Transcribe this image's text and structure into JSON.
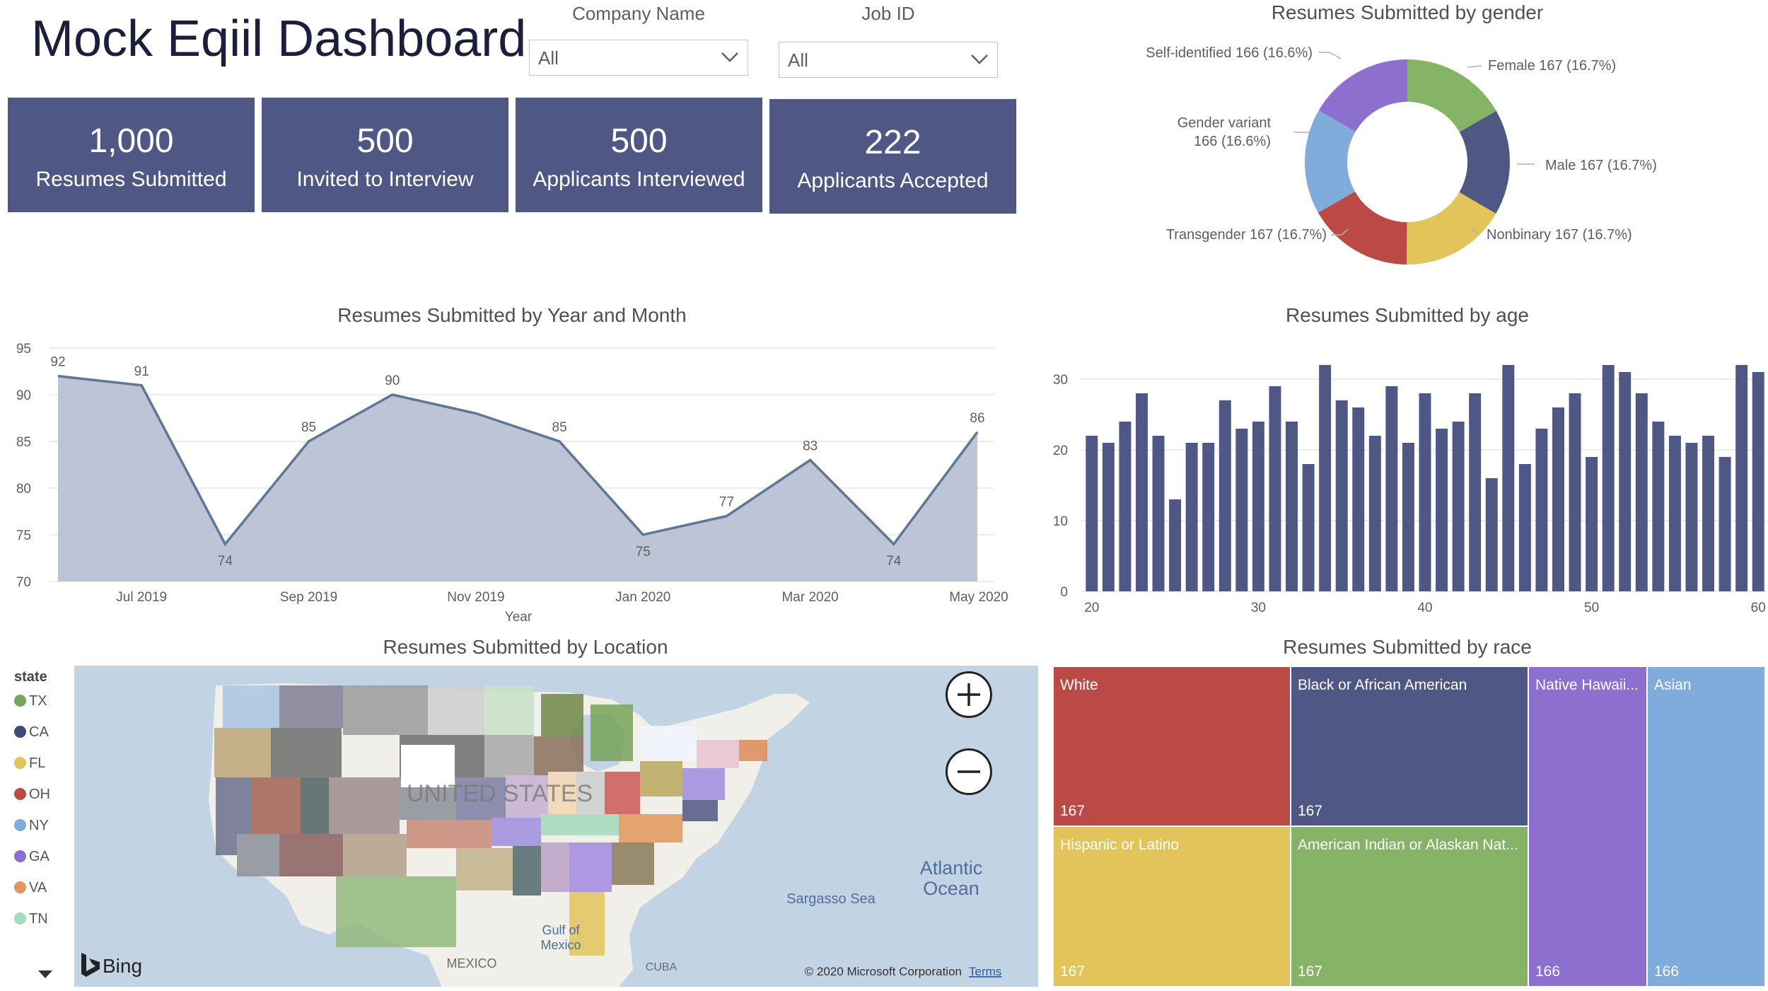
{
  "header": {
    "title": "Mock Eqiil Dashboard"
  },
  "filters": {
    "company": {
      "label": "Company Name",
      "value": "All"
    },
    "job": {
      "label": "Job ID",
      "value": "All"
    }
  },
  "kpis": [
    {
      "value": "1,000",
      "label": "Resumes Submitted"
    },
    {
      "value": "500",
      "label": "Invited to Interview"
    },
    {
      "value": "500",
      "label": "Applicants Interviewed"
    },
    {
      "value": "222",
      "label": "Applicants Accepted"
    }
  ],
  "colors": {
    "kpi_bg": "#4f5785",
    "area_fill": "#bcc4d6",
    "area_line": "#5e7795",
    "bar": "#4f5785",
    "map_water": "#c2d3e3",
    "map_land": "#f1efea"
  },
  "gender_chart": {
    "title": "Resumes Submitted by gender",
    "chart_data": {
      "type": "pie",
      "title": "Resumes Submitted by gender",
      "slices": [
        {
          "label": "Female",
          "value": 167,
          "pct": "16.7%",
          "color": "#85b466"
        },
        {
          "label": "Male",
          "value": 167,
          "pct": "16.7%",
          "color": "#4f5785"
        },
        {
          "label": "Nonbinary",
          "value": 167,
          "pct": "16.7%",
          "color": "#e2c45b"
        },
        {
          "label": "Transgender",
          "value": 167,
          "pct": "16.7%",
          "color": "#bb4a47"
        },
        {
          "label": "Gender variant",
          "value": 166,
          "pct": "16.6%",
          "color": "#80acdc"
        },
        {
          "label": "Self-identified",
          "value": 166,
          "pct": "16.6%",
          "color": "#8c6fce"
        }
      ],
      "label_texts": [
        "Female 167 (16.7%)",
        "Male 167 (16.7%)",
        "Nonbinary 167 (16.7%)",
        "Transgender 167 (16.7%)",
        "Gender variant",
        "166 (16.6%)",
        "Self-identified 166 (16.6%)"
      ]
    }
  },
  "month_chart": {
    "title": "Resumes Submitted by Year and Month",
    "chart_data": {
      "type": "area",
      "title": "Resumes Submitted by Year and Month",
      "xlabel": "Year",
      "ylabel": "",
      "ylim": [
        70,
        95
      ],
      "yticks": [
        70,
        75,
        80,
        85,
        90,
        95
      ],
      "x": [
        "Jun 2019",
        "Jul 2019",
        "Aug 2019",
        "Sep 2019",
        "Oct 2019",
        "Nov 2019",
        "Dec 2019",
        "Jan 2020",
        "Feb 2020",
        "Mar 2020",
        "Apr 2020",
        "May 2020"
      ],
      "values": [
        92,
        91,
        74,
        85,
        90,
        88,
        85,
        75,
        77,
        83,
        74,
        86
      ],
      "value_labels": [
        "92",
        "91",
        "74",
        "85",
        "90",
        "",
        "85",
        "75",
        "77",
        "83",
        "74",
        "86"
      ],
      "xtick_labels": [
        "Jul 2019",
        "Sep 2019",
        "Nov 2019",
        "Jan 2020",
        "Mar 2020",
        "May 2020"
      ],
      "grid": true
    }
  },
  "age_chart": {
    "title": "Resumes Submitted by age",
    "chart_data": {
      "type": "bar",
      "title": "Resumes Submitted by age",
      "xlabel": "",
      "ylabel": "",
      "ylim": [
        0,
        33
      ],
      "yticks": [
        0,
        10,
        20,
        30
      ],
      "xticks": [
        20,
        30,
        40,
        50,
        60
      ],
      "x": [
        20,
        21,
        22,
        23,
        24,
        25,
        26,
        27,
        28,
        29,
        30,
        31,
        32,
        33,
        34,
        35,
        36,
        37,
        38,
        39,
        40,
        41,
        42,
        43,
        44,
        45,
        46,
        47,
        48,
        49,
        50,
        51,
        52,
        53,
        54,
        55,
        56,
        57,
        58,
        59,
        60
      ],
      "values": [
        22,
        21,
        24,
        28,
        22,
        13,
        21,
        21,
        27,
        23,
        24,
        29,
        24,
        18,
        32,
        27,
        26,
        22,
        29,
        21,
        28,
        23,
        24,
        28,
        16,
        32,
        18,
        23,
        26,
        28,
        19,
        32,
        31,
        28,
        24,
        22,
        21,
        22,
        19,
        32,
        31
      ],
      "grid": true
    }
  },
  "location_map": {
    "title": "Resumes Submitted by Location",
    "legend_title": "state",
    "legend": [
      {
        "label": "TX",
        "color": "#77a35a"
      },
      {
        "label": "CA",
        "color": "#3f4a78"
      },
      {
        "label": "FL",
        "color": "#e2c45b"
      },
      {
        "label": "OH",
        "color": "#bb4a47"
      },
      {
        "label": "NY",
        "color": "#80acdc"
      },
      {
        "label": "GA",
        "color": "#8c6fce"
      },
      {
        "label": "VA",
        "color": "#e1975e"
      },
      {
        "label": "TN",
        "color": "#a4dbbc"
      }
    ],
    "labels": {
      "country": "UNITED STATES",
      "ocean_line1": "Atlantic",
      "ocean_line2": "Ocean",
      "sargasso": "Sargasso Sea",
      "gulf_line1": "Gulf of",
      "gulf_line2": "Mexico",
      "mexico": "MEXICO",
      "cuba": "CUBA",
      "brand": "Bing",
      "copyright": "© 2020 Microsoft Corporation",
      "terms": "Terms"
    }
  },
  "race_chart": {
    "title": "Resumes Submitted by race",
    "chart_data": {
      "type": "treemap",
      "title": "Resumes Submitted by race",
      "items": [
        {
          "label": "White",
          "value": 167,
          "color": "#bb4a47"
        },
        {
          "label": "Black or African American",
          "value": 167,
          "color": "#4f5785"
        },
        {
          "label": "Native Hawaii...",
          "value": 166,
          "color": "#8c6fce"
        },
        {
          "label": "Asian",
          "value": 166,
          "color": "#80acdc"
        },
        {
          "label": "Hispanic or Latino",
          "value": 167,
          "color": "#e2c45b"
        },
        {
          "label": "American Indian or Alaskan Nat...",
          "value": 167,
          "color": "#85b466"
        }
      ]
    }
  }
}
